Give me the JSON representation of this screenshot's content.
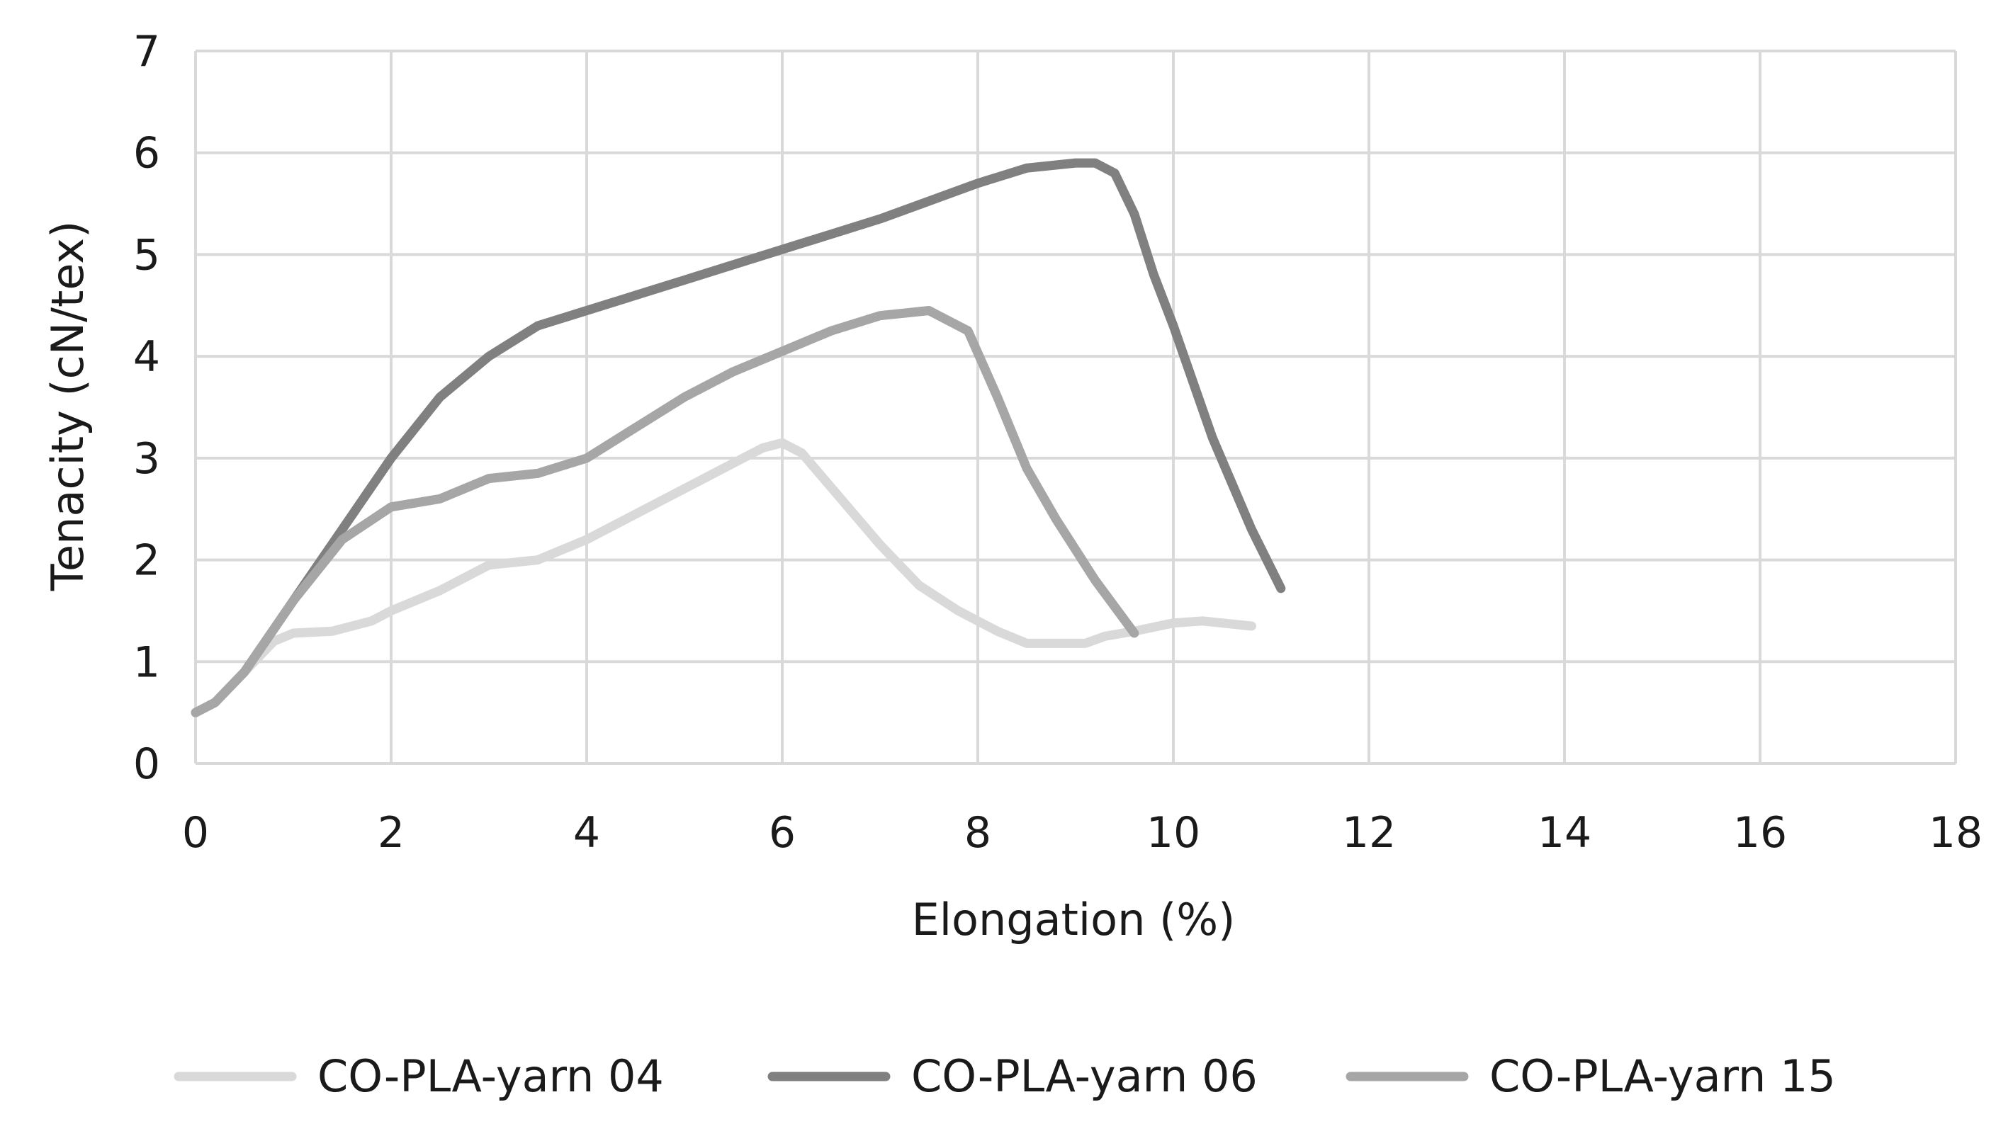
{
  "chart_data": {
    "type": "line",
    "title": "",
    "xlabel": "Elongation (%)",
    "ylabel": "Tenacity (cN/tex)",
    "xlim": [
      0,
      18
    ],
    "ylim": [
      0,
      7
    ],
    "xticks": [
      0,
      2,
      4,
      6,
      8,
      10,
      12,
      14,
      16,
      18
    ],
    "yticks": [
      0,
      1,
      2,
      3,
      4,
      5,
      6,
      7
    ],
    "grid": true,
    "legend_position": "bottom",
    "series": [
      {
        "name": "CO-PLA-yarn 04",
        "color": "#d9d9d9",
        "x": [
          0,
          0.2,
          0.5,
          0.8,
          1.0,
          1.4,
          1.8,
          2.0,
          2.5,
          3.0,
          3.5,
          4.0,
          4.5,
          5.0,
          5.5,
          5.8,
          6.0,
          6.2,
          6.6,
          7.0,
          7.4,
          7.8,
          8.2,
          8.5,
          8.8,
          9.1,
          9.3,
          9.6,
          10.0,
          10.3,
          10.5,
          10.8
        ],
        "y": [
          0.5,
          0.6,
          0.9,
          1.2,
          1.28,
          1.3,
          1.4,
          1.5,
          1.7,
          1.95,
          2.0,
          2.2,
          2.45,
          2.7,
          2.95,
          3.1,
          3.15,
          3.05,
          2.6,
          2.15,
          1.75,
          1.5,
          1.3,
          1.18,
          1.18,
          1.18,
          1.25,
          1.3,
          1.38,
          1.4,
          1.38,
          1.35
        ]
      },
      {
        "name": "CO-PLA-yarn 06",
        "color": "#808080",
        "x": [
          0,
          0.2,
          0.5,
          1.0,
          1.5,
          2.0,
          2.5,
          3.0,
          3.5,
          4.0,
          5.0,
          6.0,
          7.0,
          8.0,
          8.5,
          9.0,
          9.2,
          9.4,
          9.6,
          9.8,
          10.0,
          10.4,
          10.8,
          11.1
        ],
        "y": [
          0.5,
          0.6,
          0.9,
          1.6,
          2.3,
          3.0,
          3.6,
          4.0,
          4.3,
          4.45,
          4.75,
          5.05,
          5.35,
          5.7,
          5.85,
          5.9,
          5.9,
          5.8,
          5.4,
          4.8,
          4.3,
          3.2,
          2.3,
          1.72
        ]
      },
      {
        "name": "CO-PLA-yarn 15",
        "color": "#a6a6a6",
        "x": [
          0,
          0.2,
          0.5,
          1.0,
          1.5,
          2.0,
          2.5,
          3.0,
          3.5,
          4.0,
          4.5,
          5.0,
          5.5,
          6.0,
          6.5,
          7.0,
          7.5,
          7.9,
          8.2,
          8.5,
          8.8,
          9.2,
          9.6
        ],
        "y": [
          0.5,
          0.6,
          0.9,
          1.6,
          2.2,
          2.52,
          2.6,
          2.8,
          2.85,
          3.0,
          3.3,
          3.6,
          3.85,
          4.05,
          4.25,
          4.4,
          4.45,
          4.25,
          3.6,
          2.9,
          2.4,
          1.8,
          1.28
        ]
      }
    ]
  }
}
